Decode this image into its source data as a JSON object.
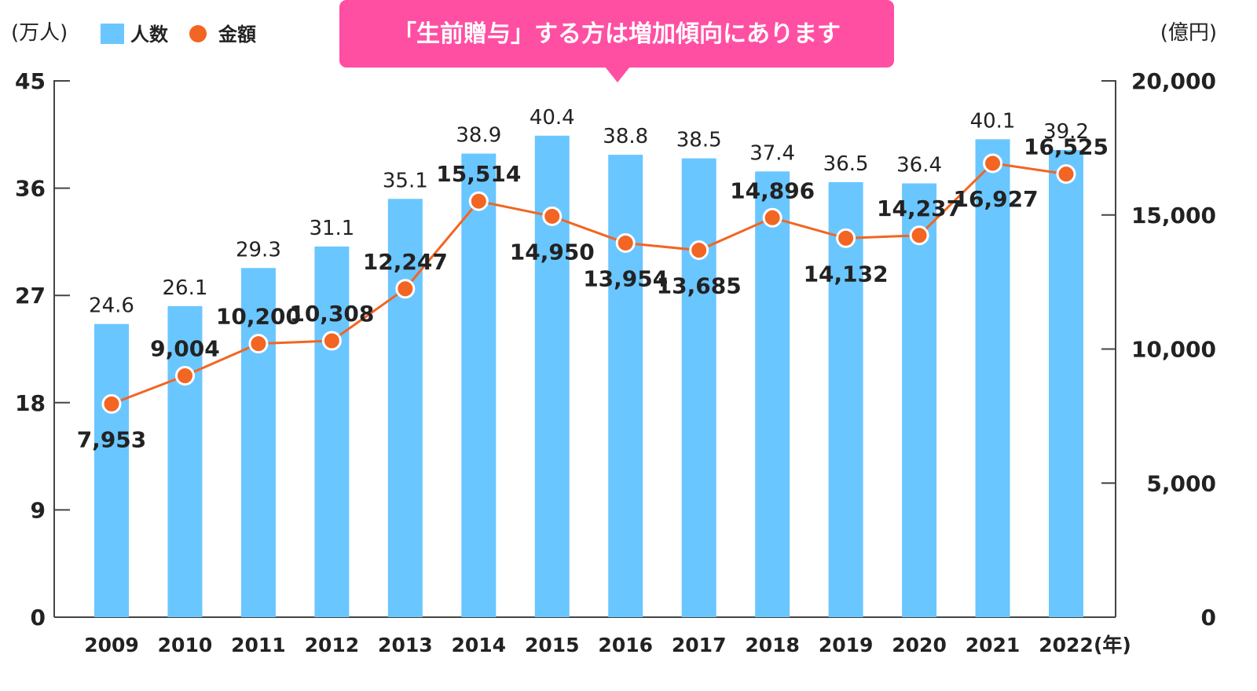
{
  "chart_data": {
    "type": "bar",
    "callout": "「生前贈与」する方は増加傾向にあります",
    "left_unit": "(万人)",
    "right_unit": "(億円)",
    "x_unit": "(年)",
    "categories": [
      "2009",
      "2010",
      "2011",
      "2012",
      "2013",
      "2014",
      "2015",
      "2016",
      "2017",
      "2018",
      "2019",
      "2020",
      "2021",
      "2022"
    ],
    "left_axis": {
      "min": 0,
      "max": 45,
      "ticks": [
        "0",
        "9",
        "18",
        "27",
        "36",
        "45"
      ]
    },
    "right_axis": {
      "min": 0,
      "max": 20000,
      "ticks": [
        "0",
        "5,000",
        "10,000",
        "15,000",
        "20,000"
      ]
    },
    "series": [
      {
        "name": "人数",
        "type": "bar",
        "axis": "left",
        "color": "#6ac6ff",
        "values": [
          24.6,
          26.1,
          29.3,
          31.1,
          35.1,
          38.9,
          40.4,
          38.8,
          38.5,
          37.4,
          36.5,
          36.4,
          40.1,
          39.2
        ],
        "labels": [
          "24.6",
          "26.1",
          "29.3",
          "31.1",
          "35.1",
          "38.9",
          "40.4",
          "38.8",
          "38.5",
          "37.4",
          "36.5",
          "36.4",
          "40.1",
          "39.2"
        ]
      },
      {
        "name": "金額",
        "type": "line",
        "axis": "right",
        "color": "#f26522",
        "values": [
          7953,
          9004,
          10200,
          10308,
          12247,
          15514,
          14950,
          13954,
          13685,
          14896,
          14132,
          14237,
          16927,
          16525
        ],
        "labels": [
          "7,953",
          "9,004",
          "10,200",
          "10,308",
          "12,247",
          "15,514",
          "14,950",
          "13,954",
          "13,685",
          "14,896",
          "14,132",
          "14,237",
          "16,927",
          "16,525"
        ]
      }
    ],
    "callout_color": "#ff4fa3"
  }
}
